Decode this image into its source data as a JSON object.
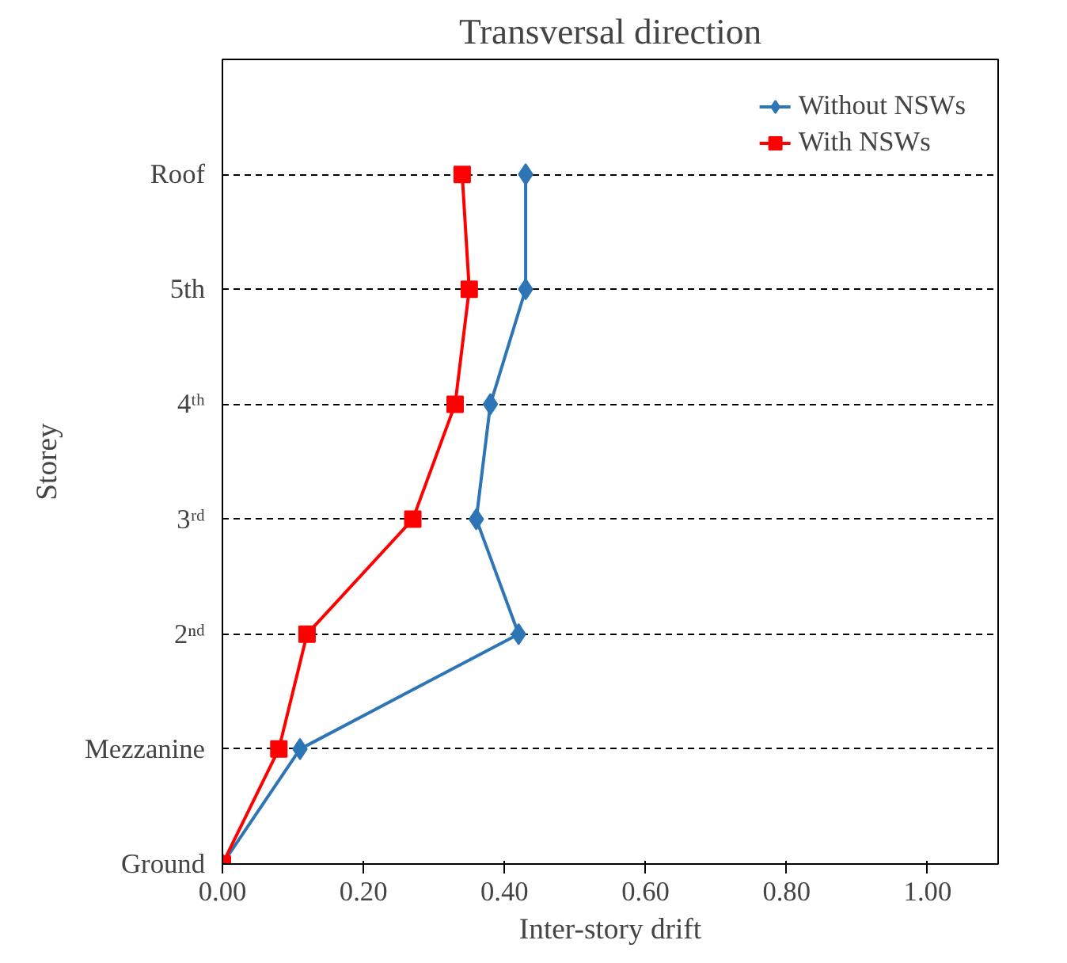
{
  "chart_data": {
    "type": "line",
    "orientation": "horizontal",
    "title": "Transversal direction",
    "xlabel": "Inter-story drift",
    "ylabel": "Storey",
    "categories": [
      "Roof",
      "5th",
      "4ᵗʰ",
      "3ʳᵈ",
      "2ⁿᵈ",
      "Mezzanine",
      "Ground"
    ],
    "series": [
      {
        "name": "Without NSWs",
        "color": "#2e75b6",
        "marker": "diamond",
        "values": [
          0.43,
          0.43,
          0.38,
          0.36,
          0.42,
          0.11,
          0.0
        ]
      },
      {
        "name": "With NSWs",
        "color": "#ff0000",
        "marker": "square",
        "values": [
          0.34,
          0.35,
          0.33,
          0.27,
          0.12,
          0.08,
          0.0
        ]
      }
    ],
    "xlim": [
      0,
      1.1
    ],
    "xticks": [
      {
        "value": 0,
        "label": "0.00"
      },
      {
        "value": 0.2,
        "label": "0.20"
      },
      {
        "value": 0.4,
        "label": "0.40"
      },
      {
        "value": 0.6,
        "label": "0.60"
      },
      {
        "value": 0.8,
        "label": "0.80"
      },
      {
        "value": 1.0,
        "label": "1.00"
      }
    ],
    "grid": "y",
    "legend": "top right"
  }
}
